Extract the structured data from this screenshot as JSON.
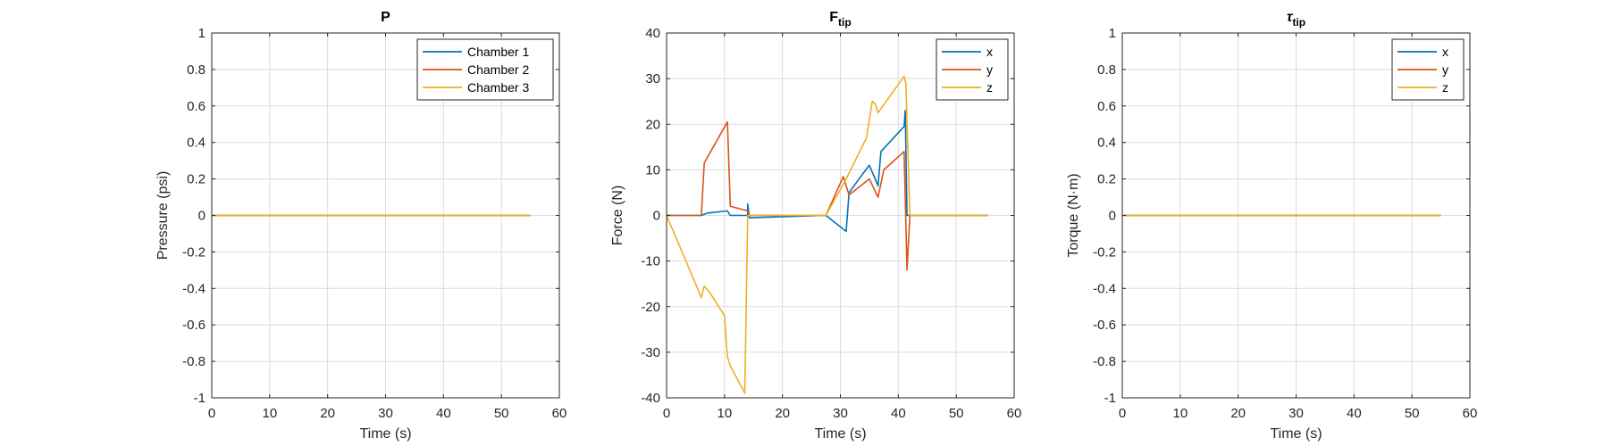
{
  "chart_data": [
    {
      "type": "line",
      "title": "P",
      "title_sub": "",
      "title_italic": false,
      "xlabel": "Time (s)",
      "ylabel": "Pressure (psi)",
      "xlim": [
        0,
        60
      ],
      "ylim": [
        -1,
        1
      ],
      "xticks": [
        0,
        10,
        20,
        30,
        40,
        50,
        60
      ],
      "yticks": [
        -1,
        -0.8,
        -0.6,
        -0.4,
        -0.2,
        0,
        0.2,
        0.4,
        0.6,
        0.8,
        1
      ],
      "grid": true,
      "legend_position": "top-right",
      "series": [
        {
          "name": "Chamber 1",
          "color": "#0072BD",
          "x": [
            0,
            55
          ],
          "y": [
            0,
            0
          ]
        },
        {
          "name": "Chamber 2",
          "color": "#D95319",
          "x": [
            0,
            55
          ],
          "y": [
            0,
            0
          ]
        },
        {
          "name": "Chamber 3",
          "color": "#EDB120",
          "x": [
            0,
            55
          ],
          "y": [
            0,
            0
          ]
        }
      ]
    },
    {
      "type": "line",
      "title": "F",
      "title_sub": "tip",
      "title_italic": false,
      "xlabel": "Time (s)",
      "ylabel": "Force (N)",
      "xlim": [
        0,
        60
      ],
      "ylim": [
        -40,
        40
      ],
      "xticks": [
        0,
        10,
        20,
        30,
        40,
        50,
        60
      ],
      "yticks": [
        -40,
        -30,
        -20,
        -10,
        0,
        10,
        20,
        30,
        40
      ],
      "grid": true,
      "legend_position": "top-right",
      "series": [
        {
          "name": "x",
          "color": "#0072BD",
          "x": [
            0,
            6,
            7,
            10.5,
            11,
            14,
            14,
            14.3,
            27.5,
            31,
            31.5,
            33.5,
            35,
            36.5,
            37,
            41,
            41.2,
            41.5,
            55.5
          ],
          "y": [
            0,
            0,
            0.5,
            1,
            0,
            0,
            2.5,
            -0.5,
            0,
            -3.5,
            5,
            8.5,
            11,
            6.5,
            14,
            19.5,
            23,
            0,
            0
          ]
        },
        {
          "name": "y",
          "color": "#D95319",
          "x": [
            0,
            6,
            6.5,
            10.5,
            11,
            14,
            14.3,
            27.5,
            30.5,
            31.5,
            35,
            36.5,
            37.5,
            41,
            41.5,
            42,
            55.5
          ],
          "y": [
            0,
            0,
            11.5,
            20.5,
            2,
            1,
            0,
            0,
            8.5,
            4.5,
            8,
            4,
            10,
            14,
            -12,
            0,
            0
          ]
        },
        {
          "name": "z",
          "color": "#EDB120",
          "x": [
            0,
            6,
            6.5,
            7.5,
            10,
            10.5,
            11,
            13.5,
            14,
            14.3,
            27.5,
            31,
            34.5,
            35.5,
            36,
            36.5,
            41,
            41.3,
            42,
            55.5
          ],
          "y": [
            0,
            -18,
            -15.5,
            -17,
            -22,
            -31,
            -33,
            -39,
            0,
            0,
            0,
            8,
            17,
            25,
            24.5,
            22.5,
            30.5,
            29,
            0,
            0
          ]
        }
      ]
    },
    {
      "type": "line",
      "title": "τ",
      "title_sub": "tip",
      "title_italic": true,
      "xlabel": "Time (s)",
      "ylabel": "Torque (N·m)",
      "xlim": [
        0,
        60
      ],
      "ylim": [
        -1,
        1
      ],
      "xticks": [
        0,
        10,
        20,
        30,
        40,
        50,
        60
      ],
      "yticks": [
        -1,
        -0.8,
        -0.6,
        -0.4,
        -0.2,
        0,
        0.2,
        0.4,
        0.6,
        0.8,
        1
      ],
      "grid": true,
      "legend_position": "top-right",
      "series": [
        {
          "name": "x",
          "color": "#0072BD",
          "x": [
            0,
            55
          ],
          "y": [
            0,
            0
          ]
        },
        {
          "name": "y",
          "color": "#D95319",
          "x": [
            0,
            55
          ],
          "y": [
            0,
            0
          ]
        },
        {
          "name": "z",
          "color": "#EDB120",
          "x": [
            0,
            55
          ],
          "y": [
            0,
            0
          ]
        }
      ]
    }
  ]
}
